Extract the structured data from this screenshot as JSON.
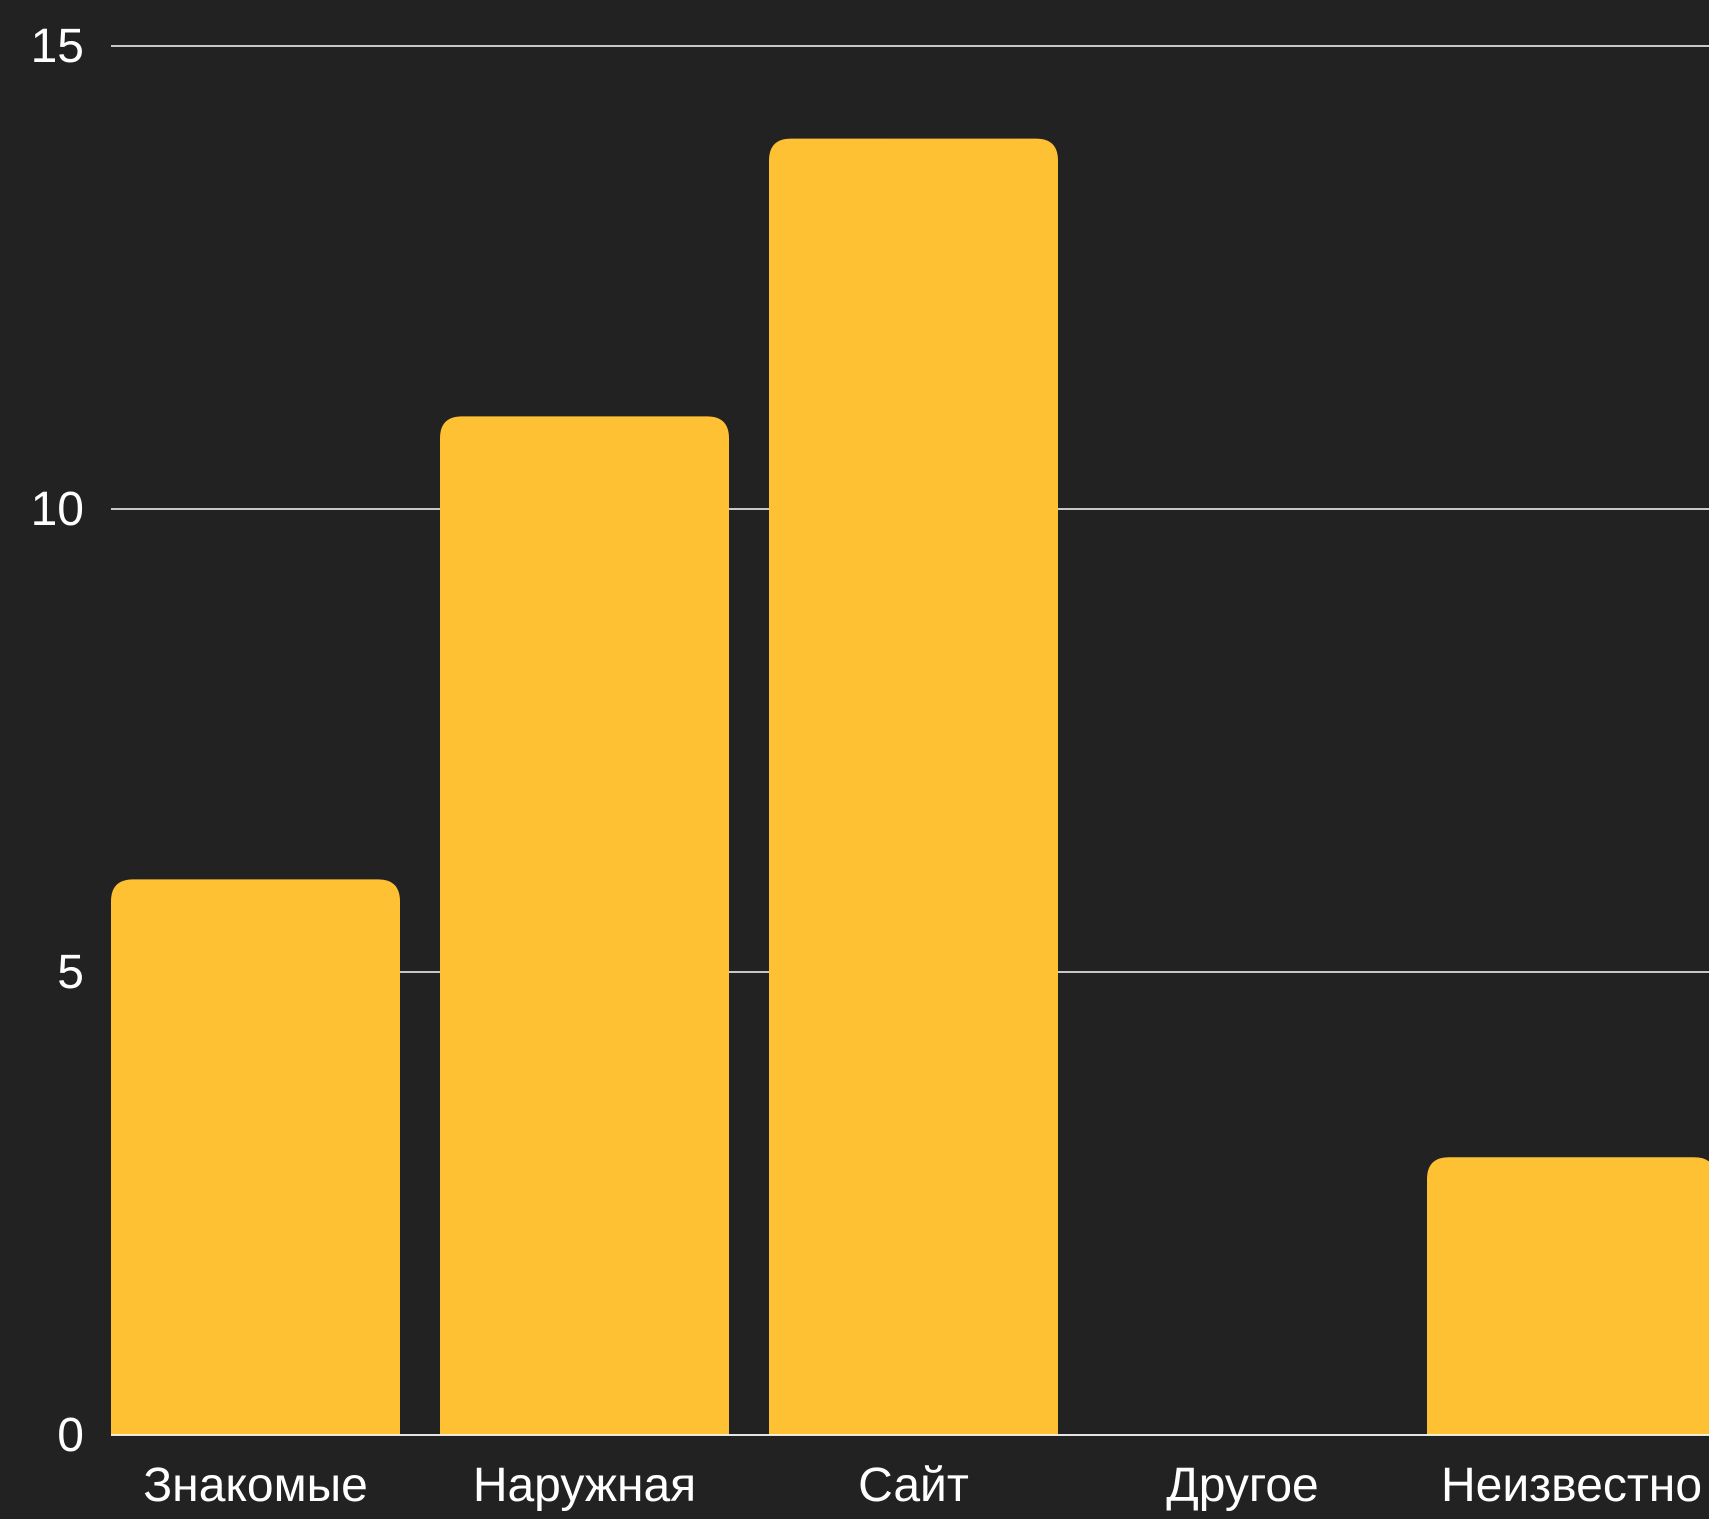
{
  "chart_data": {
    "type": "bar",
    "categories": [
      "Знакомые",
      "Наружная",
      "Сайт",
      "Другое",
      "Неизвестно"
    ],
    "values": [
      6,
      11,
      14,
      0,
      3
    ],
    "title": "",
    "xlabel": "",
    "ylabel": "",
    "ylim": [
      0,
      15
    ],
    "yticks": [
      0,
      5,
      10,
      15
    ],
    "grid": true,
    "legend": "none",
    "colors": {
      "background": "#222222",
      "bar": "#FFC134",
      "grid": "#FFFFFF",
      "text": "#FFFFFF"
    }
  }
}
